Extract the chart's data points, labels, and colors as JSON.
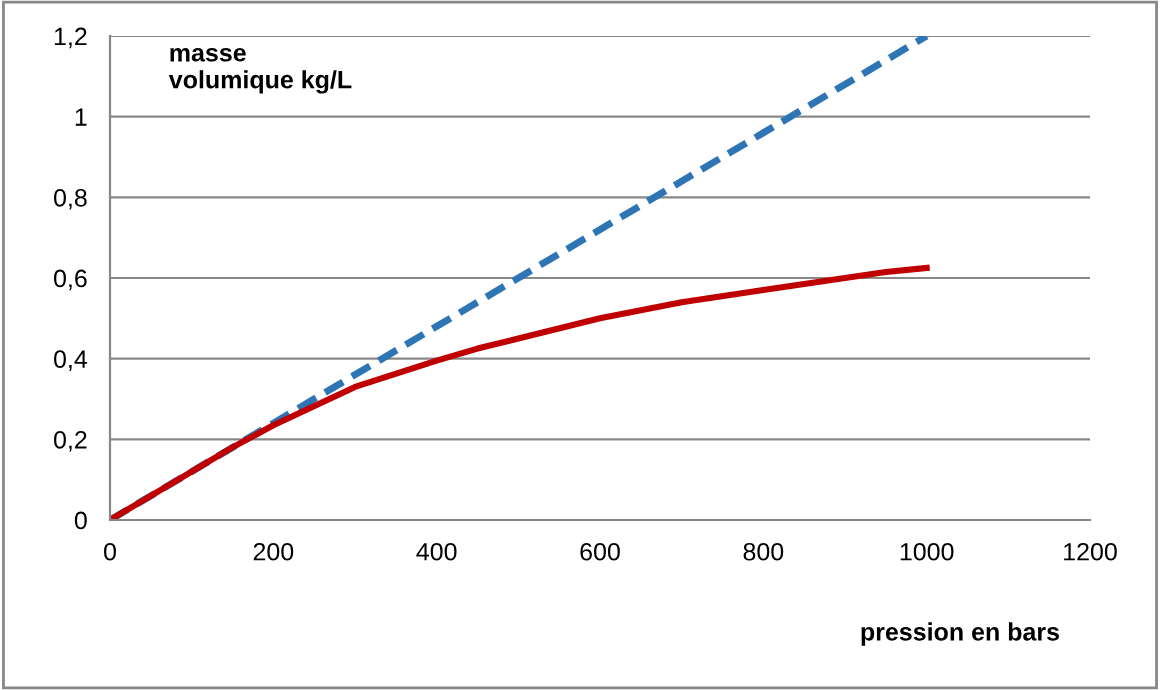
{
  "chart_data": {
    "type": "line",
    "xlabel": "pression en bars",
    "ylabel": "masse\nvolumique kg/L",
    "series": [
      {
        "color": "#2e75b6",
        "line_style": "dashed",
        "x": [
          0,
          1000
        ],
        "values": [
          0,
          1.2
        ]
      },
      {
        "color": "#c00000",
        "line_style": "solid",
        "x": [
          0,
          100,
          150,
          200,
          300,
          400,
          450,
          500,
          600,
          700,
          800,
          900,
          950,
          1000
        ],
        "values": [
          0,
          0.12,
          0.18,
          0.235,
          0.33,
          0.395,
          0.425,
          0.45,
          0.5,
          0.54,
          0.57,
          0.6,
          0.615,
          0.625
        ]
      }
    ],
    "xlim": [
      0,
      1200
    ],
    "xticks": [
      0,
      200,
      400,
      600,
      800,
      1000,
      1200
    ],
    "ylim": [
      0,
      1.2
    ],
    "yticks": [
      0,
      {
        "value": 0.2,
        "label": "0,2"
      },
      {
        "value": 0.4,
        "label": "0,4"
      },
      {
        "value": 0.6,
        "label": "0,6"
      },
      {
        "value": 0.8,
        "label": "0,8"
      },
      1,
      {
        "value": 1.2,
        "label": "1,2"
      }
    ],
    "grid": "y",
    "legend": false,
    "marker": "none"
  }
}
